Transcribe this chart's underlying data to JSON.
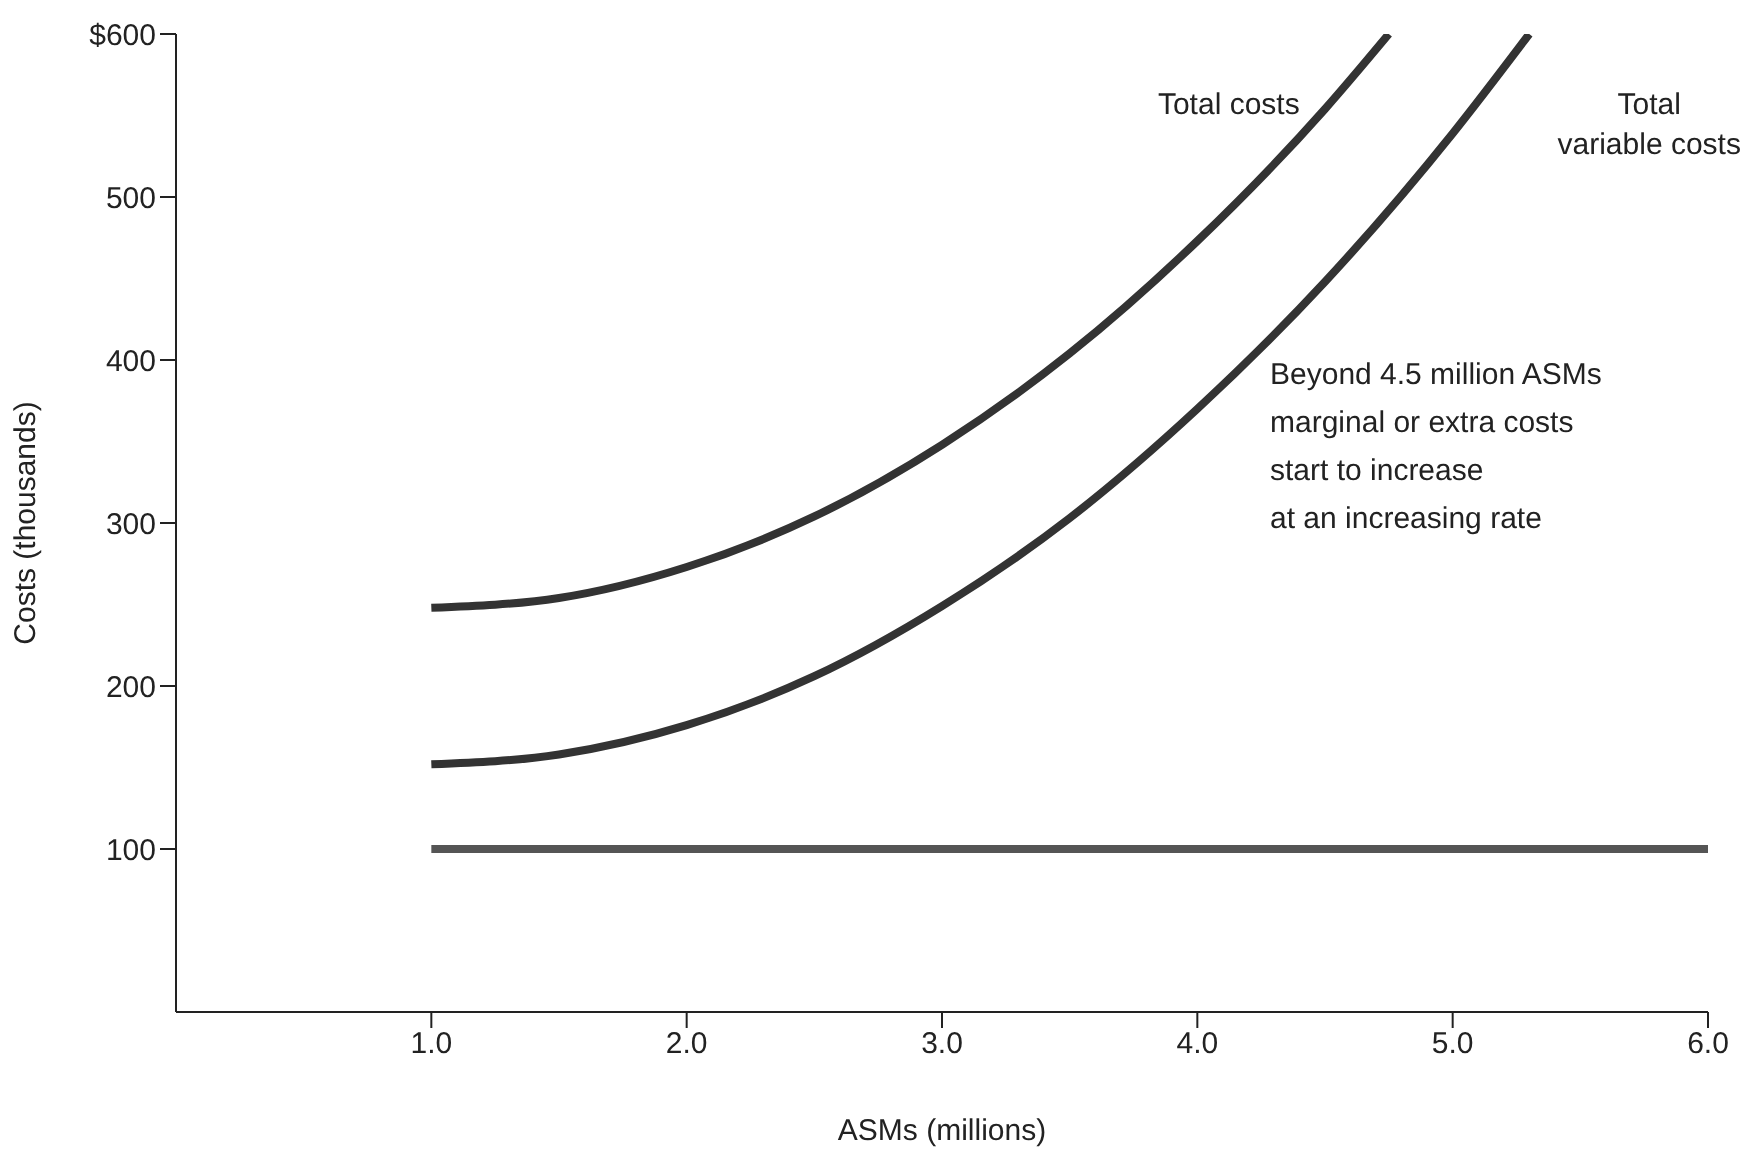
{
  "chart_data": {
    "type": "line",
    "xlabel": "ASMs (millions)",
    "ylabel": "Costs (thousands)",
    "xlim": [
      0,
      6
    ],
    "ylim": [
      0,
      600
    ],
    "xticks": [
      {
        "value": 1,
        "label": "1.0"
      },
      {
        "value": 2,
        "label": "2.0"
      },
      {
        "value": 3,
        "label": "3.0"
      },
      {
        "value": 4,
        "label": "4.0"
      },
      {
        "value": 5,
        "label": "5.0"
      },
      {
        "value": 6,
        "label": "6.0"
      }
    ],
    "yticks": [
      100,
      200,
      300,
      400,
      500,
      {
        "value": 600,
        "label": "$600"
      }
    ],
    "grid": false,
    "legend": false,
    "marker": "none",
    "line_style": "solid",
    "series": [
      {
        "name": "Total costs",
        "color": "#333333",
        "x": [
          1,
          1.5,
          2,
          2.5,
          3,
          3.5,
          4,
          4.5,
          4.75
        ],
        "values": [
          248,
          254,
          273,
          304,
          348,
          404,
          473,
          554,
          600
        ]
      },
      {
        "name": "Total variable costs",
        "color": "#333333",
        "x": [
          1,
          1.5,
          2,
          2.5,
          3,
          3.5,
          4,
          4.5,
          5,
          5.3
        ],
        "values": [
          152,
          158,
          176,
          206,
          249,
          303,
          370,
          448,
          539,
          600
        ]
      },
      {
        "color": "#555555",
        "x": [
          1,
          6
        ],
        "values": [
          100,
          100
        ]
      }
    ],
    "annotations": [
      "Beyond 4.5 million ASMs\nmarginal or extra costs\nstart to increase\nat an increasing rate"
    ]
  }
}
